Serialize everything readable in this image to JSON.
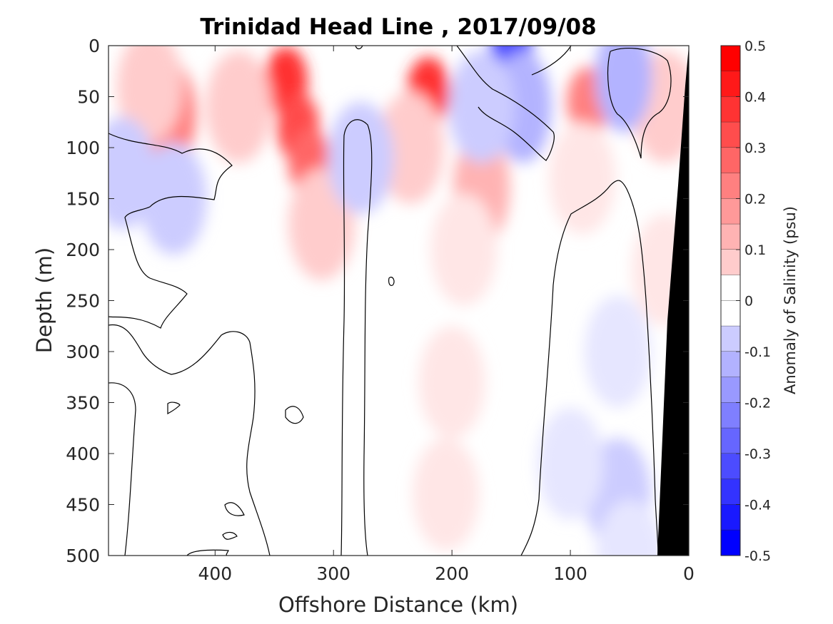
{
  "chart_data": {
    "type": "heatmap",
    "title": "Trinidad Head Line , 2017/09/08",
    "xlabel": "Offshore Distance (km)",
    "ylabel": "Depth (m)",
    "xlim": [
      490,
      0
    ],
    "ylim": [
      500,
      0
    ],
    "x_ticks": [
      "400",
      "300",
      "200",
      "100",
      "0"
    ],
    "x_tick_values": [
      400,
      300,
      200,
      100,
      0
    ],
    "y_ticks": [
      "0",
      "50",
      "100",
      "150",
      "200",
      "250",
      "300",
      "350",
      "400",
      "450",
      "500"
    ],
    "y_tick_values": [
      0,
      50,
      100,
      150,
      200,
      250,
      300,
      350,
      400,
      450,
      500
    ],
    "colorbar": {
      "label": "Anomaly of Salinity (psu)",
      "min": -0.5,
      "max": 0.5,
      "step": 0.05,
      "tick_labels": [
        "0.5",
        "0.4",
        "0.3",
        "0.2",
        "0.1",
        "0",
        "-0.1",
        "-0.2",
        "-0.3",
        "-0.4",
        "-0.5"
      ],
      "tick_values": [
        0.5,
        0.4,
        0.3,
        0.2,
        0.1,
        0,
        -0.1,
        -0.2,
        -0.3,
        -0.4,
        -0.5
      ]
    },
    "anomaly_features": [
      {
        "x": 440,
        "y": 68,
        "value": 0.25
      },
      {
        "x": 455,
        "y": 40,
        "value": 0.12
      },
      {
        "x": 340,
        "y": 35,
        "value": 0.38
      },
      {
        "x": 330,
        "y": 80,
        "value": 0.34
      },
      {
        "x": 320,
        "y": 115,
        "value": 0.3
      },
      {
        "x": 310,
        "y": 175,
        "value": 0.1
      },
      {
        "x": 380,
        "y": 60,
        "value": 0.12
      },
      {
        "x": 220,
        "y": 45,
        "value": 0.38
      },
      {
        "x": 235,
        "y": 100,
        "value": 0.12
      },
      {
        "x": 175,
        "y": 140,
        "value": 0.14
      },
      {
        "x": 190,
        "y": 200,
        "value": 0.06
      },
      {
        "x": 200,
        "y": 330,
        "value": 0.07
      },
      {
        "x": 205,
        "y": 440,
        "value": 0.06
      },
      {
        "x": 85,
        "y": 55,
        "value": 0.26
      },
      {
        "x": 90,
        "y": 130,
        "value": 0.07
      },
      {
        "x": 20,
        "y": 60,
        "value": 0.1
      },
      {
        "x": 20,
        "y": 220,
        "value": 0.06
      },
      {
        "x": 150,
        "y": 5,
        "value": -0.35
      },
      {
        "x": 140,
        "y": 60,
        "value": -0.16
      },
      {
        "x": 175,
        "y": 60,
        "value": -0.08
      },
      {
        "x": 55,
        "y": 30,
        "value": -0.16
      },
      {
        "x": 435,
        "y": 150,
        "value": -0.08
      },
      {
        "x": 478,
        "y": 125,
        "value": -0.1
      },
      {
        "x": 277,
        "y": 110,
        "value": -0.08
      },
      {
        "x": 60,
        "y": 300,
        "value": -0.07
      },
      {
        "x": 60,
        "y": 440,
        "value": -0.12
      },
      {
        "x": 100,
        "y": 410,
        "value": -0.07
      },
      {
        "x": 50,
        "y": 500,
        "value": -0.07
      }
    ],
    "bathymetry_fill_color": "#000000",
    "grid": false
  }
}
